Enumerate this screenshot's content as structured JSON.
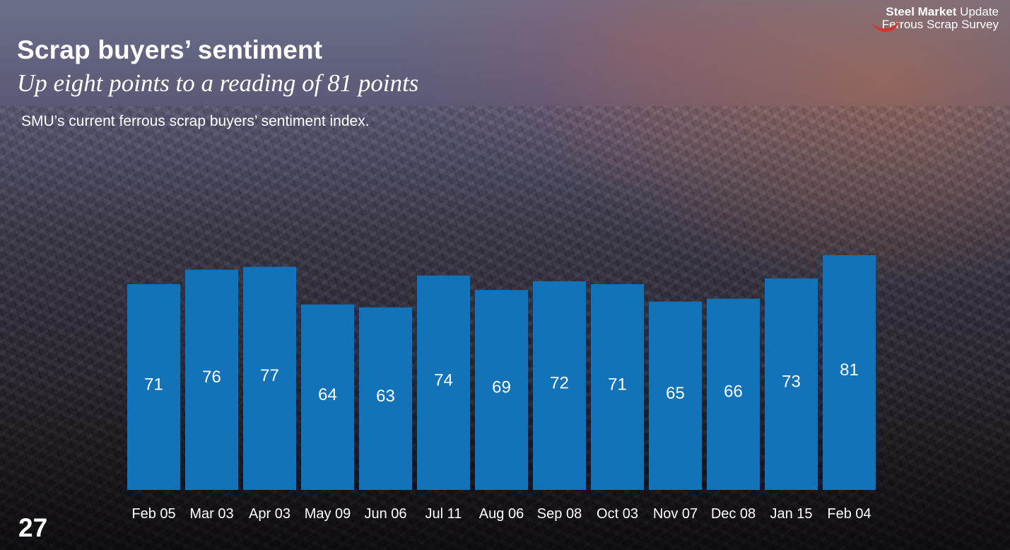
{
  "slide": {
    "title": "Scrap buyers’ sentiment",
    "subtitle": "Up eight points to a reading of 81 points",
    "description": "SMU’s current ferrous scrap buyers’ sentiment index.",
    "page_number": "27"
  },
  "brand": {
    "name_bold": "Steel Market",
    "name_regular": " Update",
    "survey": "Ferrous Scrap Survey",
    "accent_color": "#d8322c"
  },
  "colors": {
    "bar": "#1273b8",
    "text": "#ffffff"
  },
  "chart_data": {
    "type": "bar",
    "title": "Scrap buyers’ sentiment",
    "xlabel": "",
    "ylabel": "",
    "categories": [
      "Feb 05",
      "Mar 03",
      "Apr 03",
      "May 09",
      "Jun 06",
      "Jul 11",
      "Aug 06",
      "Sep 08",
      "Oct 03",
      "Nov 07",
      "Dec 08",
      "Jan 15",
      "Feb 04"
    ],
    "values": [
      71,
      76,
      77,
      64,
      63,
      74,
      69,
      72,
      71,
      65,
      66,
      73,
      81
    ],
    "ylim": [
      0,
      81
    ],
    "grid": false,
    "legend": "none",
    "data_labels": true
  }
}
